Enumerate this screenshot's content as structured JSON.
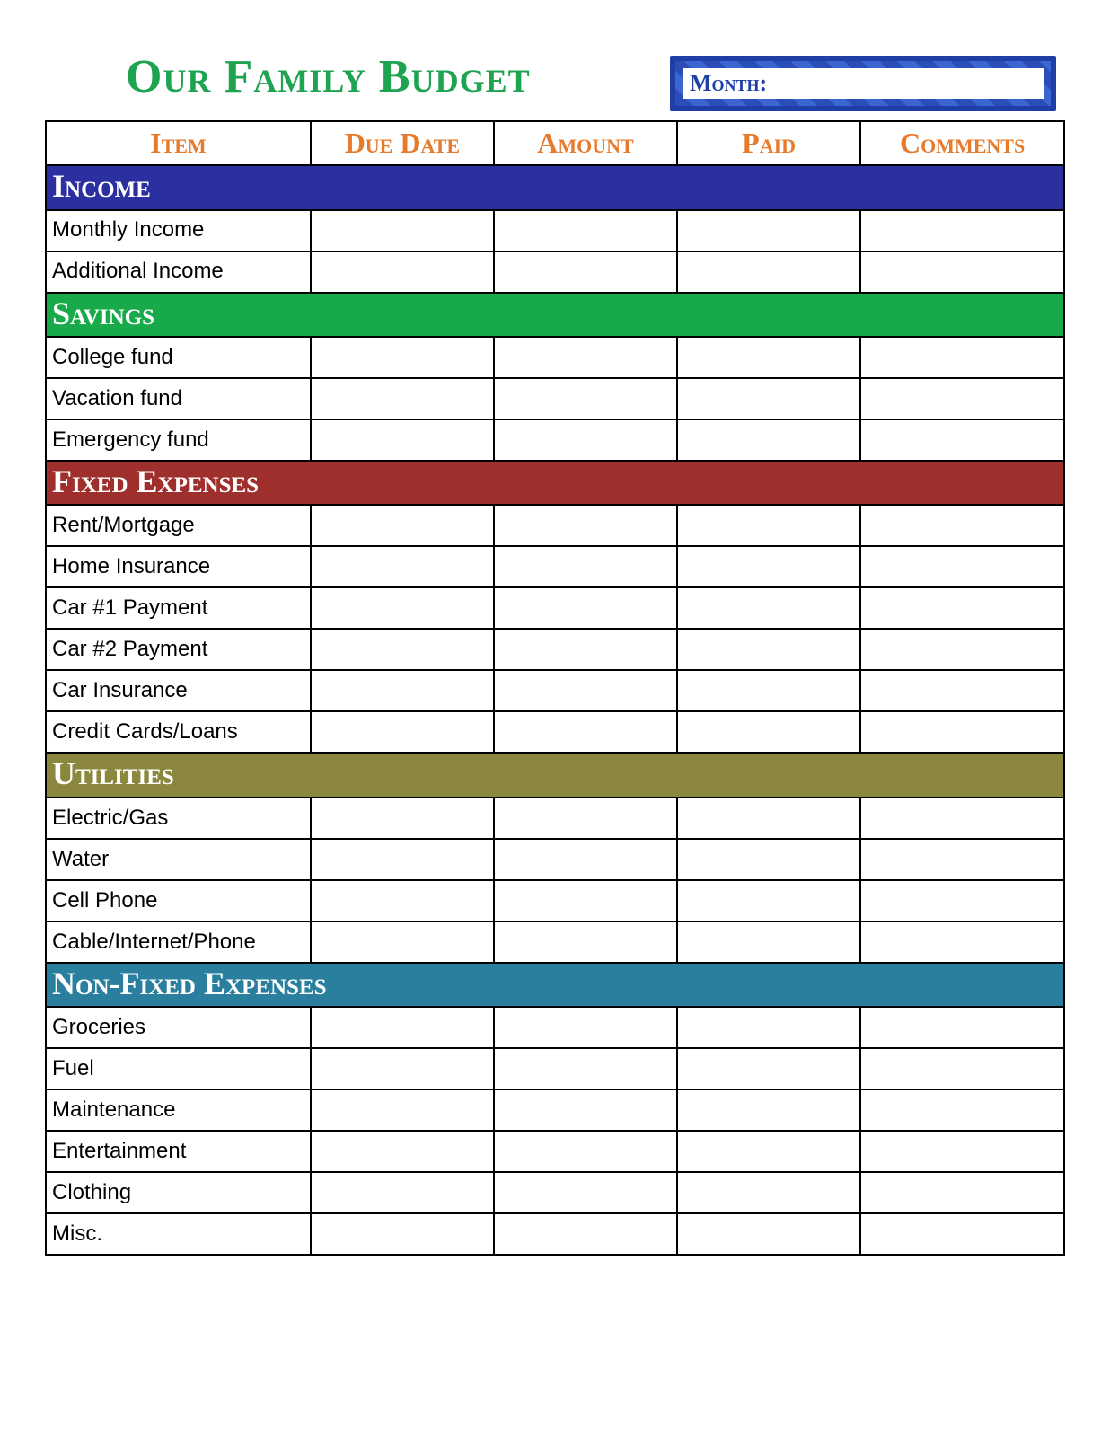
{
  "title": "Our Family Budget",
  "month_label": "Month:",
  "colors": {
    "title": "#1ea351",
    "column_header": "#e77b2c",
    "month_border": "#1f3fa6",
    "month_stripe_a": "#2a4db8",
    "month_stripe_b": "#3b66d1",
    "month_text": "#1f3fa6",
    "border": "#000000",
    "background": "#ffffff"
  },
  "typography": {
    "title_fontsize": 52,
    "header_fontsize": 32,
    "section_fontsize": 36,
    "row_fontsize": 24,
    "month_fontsize": 26
  },
  "columns": [
    {
      "key": "item",
      "label": "Item",
      "width_pct": 26
    },
    {
      "key": "due_date",
      "label": "Due Date",
      "width_pct": 18
    },
    {
      "key": "amount",
      "label": "Amount",
      "width_pct": 18
    },
    {
      "key": "paid",
      "label": "Paid",
      "width_pct": 18
    },
    {
      "key": "comments",
      "label": "Comments",
      "width_pct": 20
    }
  ],
  "sections": [
    {
      "name": "Income",
      "bg": "#2b2fa0",
      "rows": [
        "Monthly Income",
        "Additional Income"
      ]
    },
    {
      "name": "Savings",
      "bg": "#18a94a",
      "rows": [
        "College fund",
        "Vacation fund",
        "Emergency fund"
      ]
    },
    {
      "name": "Fixed Expenses",
      "bg": "#9e2f2c",
      "rows": [
        "Rent/Mortgage",
        "Home Insurance",
        "Car #1 Payment",
        "Car #2 Payment",
        "Car Insurance",
        "Credit Cards/Loans"
      ]
    },
    {
      "name": "Utilities",
      "bg": "#8c873e",
      "rows": [
        "Electric/Gas",
        "Water",
        "Cell Phone",
        "Cable/Internet/Phone"
      ]
    },
    {
      "name": "Non-Fixed Expenses",
      "bg": "#2a7f9e",
      "rows": [
        "Groceries",
        "Fuel",
        "Maintenance",
        "Entertainment",
        "Clothing",
        "Misc."
      ]
    }
  ]
}
